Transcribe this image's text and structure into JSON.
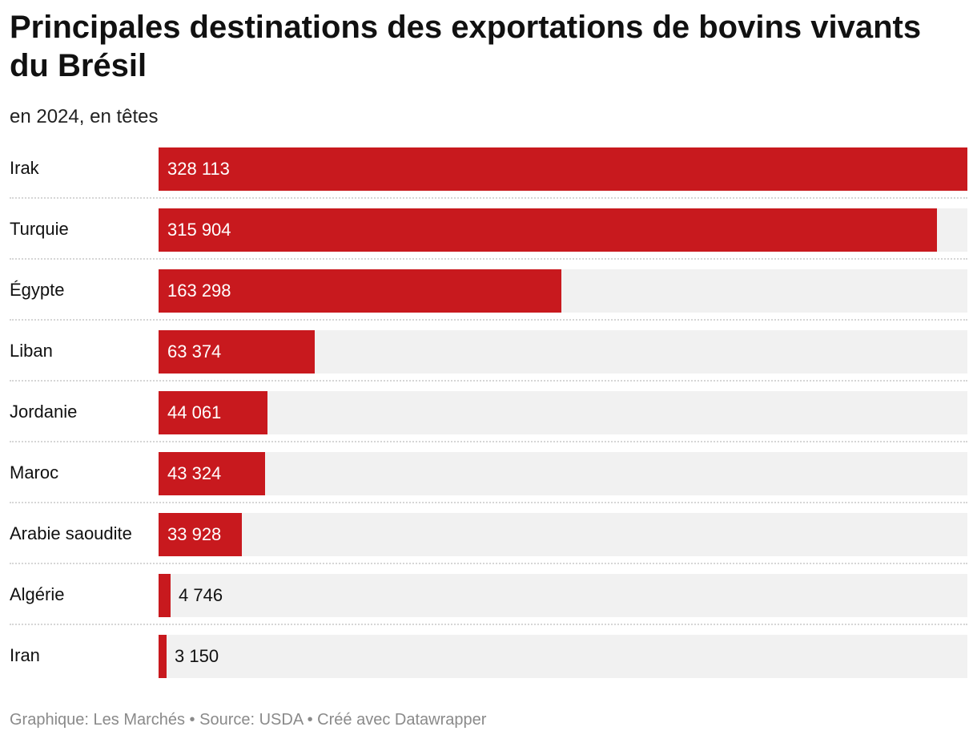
{
  "chart_data": {
    "type": "bar",
    "orientation": "horizontal",
    "title": "Principales destinations des exportations de bovins vivants du Brésil",
    "subtitle": "en 2024, en têtes",
    "categories": [
      "Irak",
      "Turquie",
      "Égypte",
      "Liban",
      "Jordanie",
      "Maroc",
      "Arabie saoudite",
      "Algérie",
      "Iran"
    ],
    "values": [
      328113,
      315904,
      163298,
      63374,
      44061,
      43324,
      33928,
      4746,
      3150
    ],
    "value_labels": [
      "328 113",
      "315 904",
      "163 298",
      "63 374",
      "44 061",
      "43 324",
      "33 928",
      "4 746",
      "3 150"
    ],
    "xlim": [
      0,
      328113
    ],
    "bar_color": "#c8191e",
    "track_color": "#f1f1f1",
    "footer": "Graphique: Les Marchés • Source: USDA • Créé avec Datawrapper"
  }
}
